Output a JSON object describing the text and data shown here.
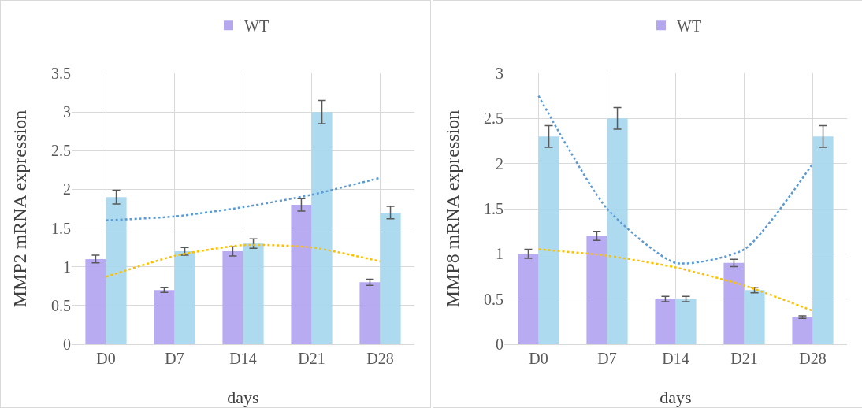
{
  "chart_data": [
    {
      "type": "bar",
      "ylabel": "MMP2 mRNA expression",
      "xlabel": "days",
      "categories": [
        "D0",
        "D7",
        "D14",
        "D21",
        "D28"
      ],
      "ylim": [
        0,
        3.5
      ],
      "yticks": [
        0,
        0.5,
        1,
        1.5,
        2,
        2.5,
        3,
        3.5
      ],
      "grid": true,
      "legend": "top",
      "series": [
        {
          "name": "WT",
          "color": "#b4a7f0",
          "values": [
            1.1,
            0.7,
            1.2,
            1.8,
            0.8
          ],
          "errors": [
            0.05,
            0.03,
            0.06,
            0.08,
            0.04
          ]
        },
        {
          "color": "#a9d8ee",
          "values": [
            1.9,
            1.2,
            1.3,
            3.0,
            1.7
          ],
          "errors": [
            0.09,
            0.05,
            0.06,
            0.15,
            0.08
          ]
        },
        {
          "type": "line",
          "line_style": "dotted",
          "marker": "none",
          "color": "#ffc000",
          "x": [
            "D0",
            "D7",
            "D14",
            "D21",
            "D28"
          ],
          "values": [
            0.87,
            1.14,
            1.28,
            1.25,
            1.07
          ]
        },
        {
          "type": "line",
          "line_style": "dotted",
          "marker": "none",
          "color": "#5b9bd5",
          "x": [
            "D0",
            "D7",
            "D14",
            "D21",
            "D28"
          ],
          "values": [
            1.6,
            1.65,
            1.77,
            1.93,
            2.15
          ]
        }
      ]
    },
    {
      "type": "bar",
      "ylabel": "MMP8 mRNA expression",
      "xlabel": "days",
      "categories": [
        "D0",
        "D7",
        "D14",
        "D21",
        "D28"
      ],
      "ylim": [
        0,
        3
      ],
      "yticks": [
        0,
        0.5,
        1,
        1.5,
        2,
        2.5,
        3
      ],
      "grid": true,
      "legend": "top",
      "series": [
        {
          "name": "WT",
          "color": "#b4a7f0",
          "values": [
            1.0,
            1.2,
            0.5,
            0.9,
            0.3
          ],
          "errors": [
            0.05,
            0.05,
            0.03,
            0.04,
            0.015
          ]
        },
        {
          "color": "#a9d8ee",
          "values": [
            2.3,
            2.5,
            0.5,
            0.6,
            2.3
          ],
          "errors": [
            0.12,
            0.12,
            0.03,
            0.03,
            0.12
          ]
        },
        {
          "type": "line",
          "line_style": "dotted",
          "marker": "none",
          "color": "#ffc000",
          "x": [
            "D0",
            "D7",
            "D14",
            "D21",
            "D28"
          ],
          "values": [
            1.05,
            0.98,
            0.85,
            0.65,
            0.37
          ]
        },
        {
          "type": "line",
          "line_style": "dotted",
          "marker": "none",
          "color": "#5b9bd5",
          "x": [
            "D0",
            "D7",
            "D14",
            "D21",
            "D28"
          ],
          "values": [
            2.75,
            1.5,
            0.9,
            1.05,
            2.0
          ]
        }
      ]
    }
  ]
}
